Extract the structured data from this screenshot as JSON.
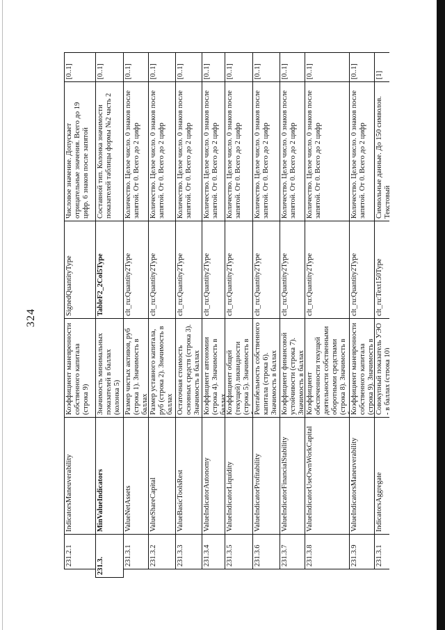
{
  "page_number": "324",
  "rows": [
    {
      "num": "231.2.1",
      "name": "IndicatorsManeuverability",
      "desc": "Коэффициент маневренности собственного капитала (строка 9)",
      "type": "SignedQuantityType",
      "constraint": "Числовое значение. Допускает отрицательные значения. Всего до 19 цифр. 6 знаков после запятой",
      "mult": "[0..1]"
    },
    {
      "num": "231.3.",
      "name": "MinValueIndicators",
      "desc": "Значимость минимальных показателей в баллах (колонка 5)",
      "type": "TableF2_2Col5Type",
      "constraint": "Составной тип. Колонка значимости показателей таблицы формы №2 часть 2",
      "mult": "[0..1]"
    },
    {
      "num": "231.3.1",
      "name": "ValueNetAssets",
      "desc": "Размер чистых активов, руб (строка 1). Значимость в баллах",
      "type": "clt_ru:Quantity2Type",
      "constraint": "Количество. Целое число. 0 знаков после запятой. От 0. Всего до 2 цифр",
      "mult": "[0..1]"
    },
    {
      "num": "231.3.2",
      "name": "ValueShareCapital",
      "desc": "Размер уставного капитала, руб (строка 2). Значимость в баллах",
      "type": "clt_ru:Quantity2Type",
      "constraint": "Количество. Целое число. 0 знаков после запятой. От 0. Всего до 2 цифр",
      "mult": "[0..1]"
    },
    {
      "num": "231.3.3",
      "name": "ValueBasicToolsRest",
      "desc": "Остаточная стоимость основных средств (строка 3). Значимость в баллах",
      "type": "clt_ru:Quantity2Type",
      "constraint": "Количество. Целое число. 0 знаков после запятой. От 0. Всего до 2 цифр",
      "mult": "[0..1]"
    },
    {
      "num": "231.3.4",
      "name": "ValueIndicatorAutonomy",
      "desc": "Коэффициент автономии (строка 4). Значимость в баллах",
      "type": "clt_ru:Quantity2Type",
      "constraint": "Количество. Целое число. 0 знаков после запятой. От 0. Всего до 2 цифр",
      "mult": "[0..1]"
    },
    {
      "num": "231.3.5",
      "name": "ValueIndicatorLiquidity",
      "desc": "Коэффициент общей (текущей) ликвидности (строка 5). Значимость в баллах",
      "type": "clt_ru:Quantity2Type",
      "constraint": "Количество. Целое число. 0 знаков после запятой. От 0. Всего до 2 цифр",
      "mult": "[0..1]"
    },
    {
      "num": "231.3.6",
      "name": "ValueIndicatorProfitability",
      "desc": "Рентабельность собственного капитала (строка 6). Значимость в баллах",
      "type": "clt_ru:Quantity2Type",
      "constraint": "Количество. Целое число. 0 знаков после запятой. От 0. Всего до 2 цифр",
      "mult": "[0..1]"
    },
    {
      "num": "231.3.7",
      "name": "ValueIndicatorFinancialStability",
      "desc": "Коэффициент финансовой устойчивости (строка 7). Значимость в баллах",
      "type": "clt_ru:Quantity2Type",
      "constraint": "Количество. Целое число. 0 знаков после запятой. От 0. Всего до 2 цифр",
      "mult": "[0..1]"
    },
    {
      "num": "231.3.8",
      "name": "ValueIndicatorUseOwnWorkCapital",
      "desc": "Коэффициент обеспеченности текущей деятельности собственными оборотными средствами (строка 8). Значимость в баллах",
      "type": "clt_ru:Quantity2Type",
      "constraint": "Количество. Целое число. 0 знаков после запятой. От 0. Всего до 2 цифр",
      "mult": "[0..1]"
    },
    {
      "num": "231.3.9",
      "name": "ValueIndicatorsManeuverability",
      "desc": "Коэффициент маневренности собственного капитала (строка 9). Значимость в баллах",
      "type": "clt_ru:Quantity2Type",
      "constraint": "Количество. Целое число. 0 знаков после запятой. От 0. Всего до 2 цифр",
      "mult": "[0..1]"
    },
    {
      "num": "231.3.1",
      "name": "IndicatorsAggregate",
      "desc": "Совокупный показатель УЭО - в баллах (строка 10)",
      "type": "clt_ru:Text150Type",
      "constraint": "Символьные данные. До 150 символов. Текстовый",
      "mult": "[1]"
    }
  ]
}
